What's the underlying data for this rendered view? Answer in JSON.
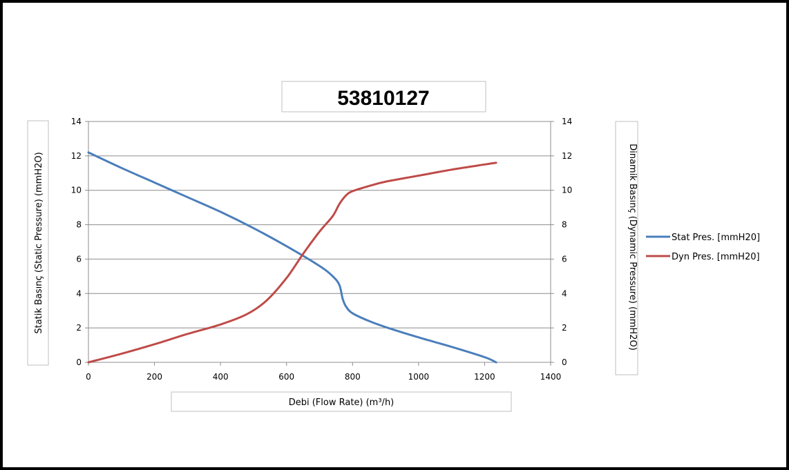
{
  "chart_data": {
    "type": "line",
    "title": "53810127",
    "xlabel": "Debi (Flow Rate) (m³/h)",
    "ylabel": "Statik Basınç (Static Pressure) (mmH2O)",
    "y2label": "Dinamik Basınç (Dynamic Pressure) (mmH2O)",
    "xlim": [
      0,
      1400
    ],
    "ylim": [
      0,
      14
    ],
    "y2lim": [
      0,
      14
    ],
    "xticks": [
      "0",
      "200",
      "400",
      "600",
      "800",
      "1000",
      "1200",
      "1400"
    ],
    "yticks": [
      "0",
      "2",
      "4",
      "6",
      "8",
      "10",
      "12",
      "14"
    ],
    "y2ticks": [
      "0",
      "2",
      "4",
      "6",
      "8",
      "10",
      "12",
      "14"
    ],
    "grid": true,
    "legend_position": "right",
    "series": [
      {
        "name": "Stat Pres. [mmH20]",
        "color": "#4a7ebb",
        "axis": "left",
        "x": [
          0,
          100,
          200,
          300,
          400,
          500,
          600,
          700,
          740,
          760,
          770,
          780,
          800,
          850,
          900,
          1000,
          1100,
          1200,
          1235
        ],
        "y": [
          12.2,
          11.3,
          10.45,
          9.6,
          8.75,
          7.8,
          6.75,
          5.6,
          5.0,
          4.5,
          3.7,
          3.25,
          2.85,
          2.4,
          2.05,
          1.45,
          0.9,
          0.3,
          0.0
        ]
      },
      {
        "name": "Dyn Pres. [mmH20]",
        "color": "#be4b48",
        "axis": "right",
        "x": [
          0,
          100,
          200,
          300,
          400,
          480,
          540,
          600,
          650,
          700,
          740,
          760,
          780,
          800,
          850,
          900,
          1000,
          1100,
          1200,
          1235
        ],
        "y": [
          0.0,
          0.5,
          1.05,
          1.65,
          2.2,
          2.8,
          3.6,
          4.9,
          6.3,
          7.6,
          8.5,
          9.2,
          9.7,
          9.95,
          10.25,
          10.5,
          10.85,
          11.2,
          11.5,
          11.6
        ]
      }
    ]
  }
}
